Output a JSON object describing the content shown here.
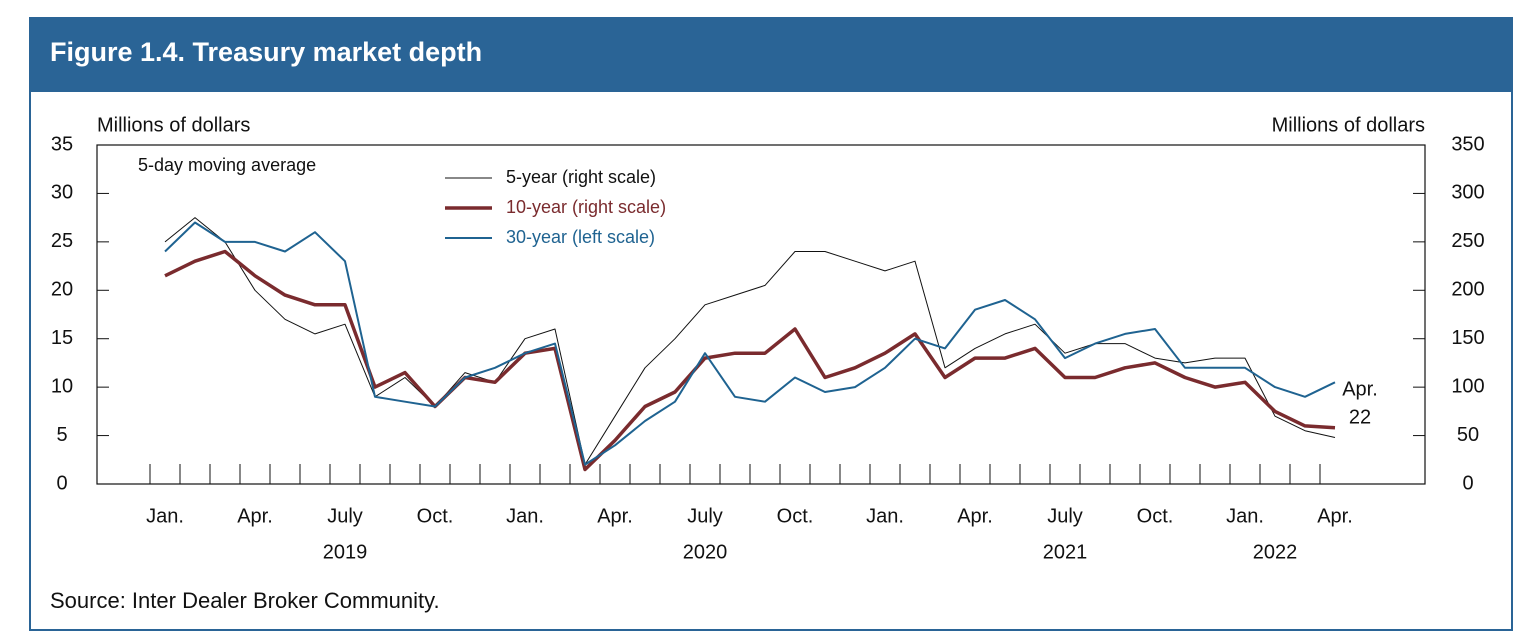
{
  "chart_data": {
    "type": "line",
    "title": "Figure 1.4. Treasury market depth",
    "ylabel": "Millions of dollars",
    "y2label": "Millions of dollars",
    "annotations": [
      "5-day moving average",
      "Apr.",
      "22"
    ],
    "source": "Source: Inter Dealer Broker Community.",
    "x": [
      "2019-01",
      "2019-02",
      "2019-03",
      "2019-04",
      "2019-05",
      "2019-06",
      "2019-07",
      "2019-08",
      "2019-09",
      "2019-10",
      "2019-11",
      "2019-12",
      "2020-01",
      "2020-02",
      "2020-03",
      "2020-04",
      "2020-05",
      "2020-06",
      "2020-07",
      "2020-08",
      "2020-09",
      "2020-10",
      "2020-11",
      "2020-12",
      "2021-01",
      "2021-02",
      "2021-03",
      "2021-04",
      "2021-05",
      "2021-06",
      "2021-07",
      "2021-08",
      "2021-09",
      "2021-10",
      "2021-11",
      "2021-12",
      "2022-01",
      "2022-02",
      "2022-03",
      "2022-04"
    ],
    "series": [
      {
        "name": "5-year (right scale)",
        "color": "#111111",
        "axis": "y2",
        "width": 1,
        "values": [
          250,
          275,
          250,
          200,
          170,
          155,
          165,
          90,
          110,
          80,
          115,
          105,
          150,
          160,
          20,
          70,
          120,
          150,
          185,
          195,
          205,
          240,
          240,
          230,
          220,
          230,
          120,
          140,
          155,
          165,
          135,
          145,
          145,
          130,
          125,
          130,
          130,
          70,
          55,
          48
        ]
      },
      {
        "name": "10-year (right scale)",
        "color": "#7a2b2e",
        "axis": "y2",
        "width": 3.5,
        "values": [
          215,
          230,
          240,
          215,
          195,
          185,
          185,
          100,
          115,
          80,
          110,
          105,
          135,
          140,
          15,
          45,
          80,
          95,
          130,
          135,
          135,
          160,
          110,
          120,
          135,
          155,
          110,
          130,
          130,
          140,
          110,
          110,
          120,
          125,
          110,
          100,
          105,
          75,
          60,
          58
        ]
      },
      {
        "name": "30-year (left scale)",
        "color": "#1f6391",
        "axis": "y",
        "width": 2,
        "values": [
          24,
          27,
          25,
          25,
          24,
          26,
          23,
          9,
          8.5,
          8,
          11,
          12,
          13.5,
          14.5,
          2,
          4,
          6.5,
          8.5,
          13.5,
          9,
          8.5,
          11,
          9.5,
          10,
          12,
          15,
          14,
          18,
          19,
          17,
          13,
          14.5,
          15.5,
          16,
          12,
          12,
          12,
          10,
          9,
          10.5
        ]
      }
    ],
    "xticks": [
      {
        "value": "2019-01",
        "label": "Jan."
      },
      {
        "value": "2019-04",
        "label": "Apr."
      },
      {
        "value": "2019-07",
        "label": "July"
      },
      {
        "value": "2019-10",
        "label": "Oct."
      },
      {
        "value": "2020-01",
        "label": "Jan."
      },
      {
        "value": "2020-04",
        "label": "Apr."
      },
      {
        "value": "2020-07",
        "label": "July"
      },
      {
        "value": "2020-10",
        "label": "Oct."
      },
      {
        "value": "2021-01",
        "label": "Jan."
      },
      {
        "value": "2021-04",
        "label": "Apr."
      },
      {
        "value": "2021-07",
        "label": "July"
      },
      {
        "value": "2021-10",
        "label": "Oct."
      },
      {
        "value": "2022-01",
        "label": "Jan."
      },
      {
        "value": "2022-04",
        "label": "Apr."
      }
    ],
    "year_labels": [
      {
        "value": "2019-07",
        "label": "2019"
      },
      {
        "value": "2020-07",
        "label": "2020"
      },
      {
        "value": "2021-07",
        "label": "2021"
      },
      {
        "value": "2022-02",
        "label": "2022"
      }
    ],
    "ylim": [
      0,
      35
    ],
    "yticks": [
      0,
      5,
      10,
      15,
      20,
      25,
      30,
      35
    ],
    "y2lim": [
      0,
      350
    ],
    "y2ticks": [
      0,
      50,
      100,
      150,
      200,
      250,
      300,
      350
    ],
    "grid": false
  }
}
